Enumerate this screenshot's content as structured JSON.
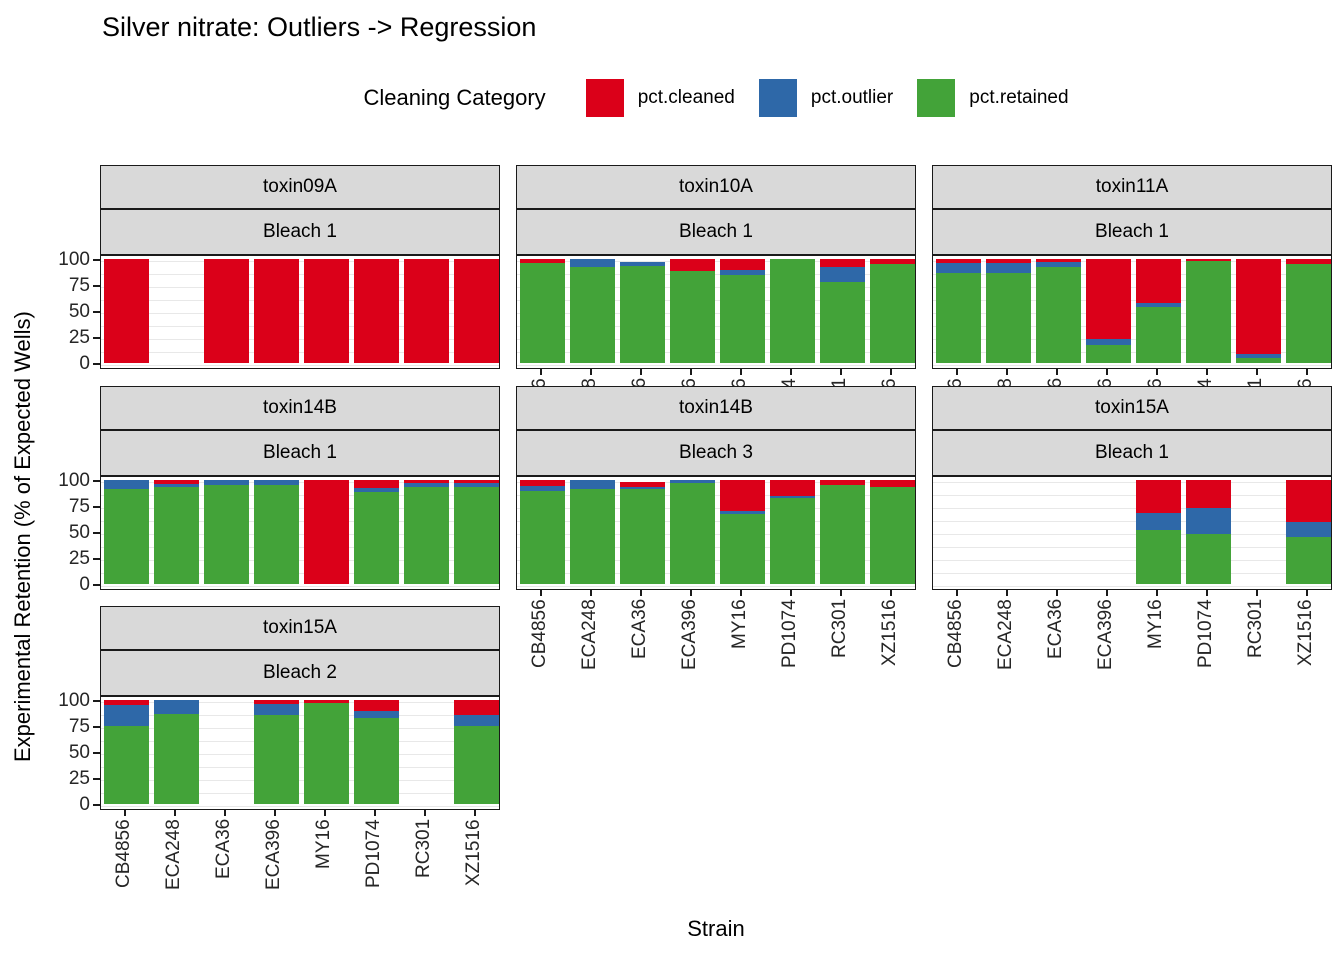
{
  "title": "Silver nitrate: Outliers -> Regression",
  "legend": {
    "title": "Cleaning Category",
    "items": [
      {
        "key": "cleaned",
        "label": "pct.cleaned",
        "color": "#db0019"
      },
      {
        "key": "outlier",
        "label": "pct.outlier",
        "color": "#2e68a8"
      },
      {
        "key": "retained",
        "label": "pct.retained",
        "color": "#43a339"
      }
    ]
  },
  "axes": {
    "x_title": "Strain",
    "y_title": "Experimental Retention (% of Expected Wells)",
    "y_ticks": [
      100,
      75,
      50,
      25,
      0
    ],
    "y_range": [
      0,
      100
    ],
    "grid_step": 12.5
  },
  "strains": [
    "CB4856",
    "ECA248",
    "ECA36",
    "ECA396",
    "MY16",
    "PD1074",
    "RC301",
    "XZ1516"
  ],
  "chart_data": {
    "type": "bar",
    "stacked": true,
    "stack_order_bottom_to_top": [
      "retained",
      "outlier",
      "cleaned"
    ],
    "categories": [
      "CB4856",
      "ECA248",
      "ECA36",
      "ECA396",
      "MY16",
      "PD1074",
      "RC301",
      "XZ1516"
    ],
    "panels": [
      {
        "row": 1,
        "col": 1,
        "toxin": "toxin09A",
        "bleach": "Bleach 1",
        "x_labels": false,
        "bars": [
          {
            "cleaned": 100,
            "outlier": 0,
            "retained": 0
          },
          null,
          {
            "cleaned": 100,
            "outlier": 0,
            "retained": 0
          },
          {
            "cleaned": 100,
            "outlier": 0,
            "retained": 0
          },
          {
            "cleaned": 100,
            "outlier": 0,
            "retained": 0
          },
          {
            "cleaned": 100,
            "outlier": 0,
            "retained": 0
          },
          {
            "cleaned": 100,
            "outlier": 0,
            "retained": 0
          },
          {
            "cleaned": 100,
            "outlier": 0,
            "retained": 0
          }
        ]
      },
      {
        "row": 1,
        "col": 2,
        "toxin": "toxin10A",
        "bleach": "Bleach 1",
        "x_labels": true,
        "bars": [
          {
            "cleaned": 4,
            "outlier": 0,
            "retained": 96
          },
          {
            "cleaned": 0,
            "outlier": 8,
            "retained": 92
          },
          {
            "cleaned": 0,
            "outlier": 4,
            "retained": 93
          },
          {
            "cleaned": 12,
            "outlier": 0,
            "retained": 88
          },
          {
            "cleaned": 11,
            "outlier": 4,
            "retained": 85
          },
          {
            "cleaned": 0,
            "outlier": 0,
            "retained": 100
          },
          {
            "cleaned": 8,
            "outlier": 14,
            "retained": 78
          },
          {
            "cleaned": 5,
            "outlier": 0,
            "retained": 95
          }
        ]
      },
      {
        "row": 1,
        "col": 3,
        "toxin": "toxin11A",
        "bleach": "Bleach 1",
        "x_labels": true,
        "bars": [
          {
            "cleaned": 4,
            "outlier": 9,
            "retained": 87
          },
          {
            "cleaned": 4,
            "outlier": 9,
            "retained": 87
          },
          {
            "cleaned": 3,
            "outlier": 5,
            "retained": 92
          },
          {
            "cleaned": 77,
            "outlier": 6,
            "retained": 17
          },
          {
            "cleaned": 42,
            "outlier": 4,
            "retained": 54
          },
          {
            "cleaned": 2,
            "outlier": 0,
            "retained": 98
          },
          {
            "cleaned": 91,
            "outlier": 4,
            "retained": 5
          },
          {
            "cleaned": 5,
            "outlier": 0,
            "retained": 95
          }
        ]
      },
      {
        "row": 2,
        "col": 1,
        "toxin": "toxin14B",
        "bleach": "Bleach 1",
        "x_labels": false,
        "bars": [
          {
            "cleaned": 0,
            "outlier": 9,
            "retained": 91
          },
          {
            "cleaned": 4,
            "outlier": 3,
            "retained": 93
          },
          {
            "cleaned": 0,
            "outlier": 5,
            "retained": 95
          },
          {
            "cleaned": 0,
            "outlier": 5,
            "retained": 95
          },
          {
            "cleaned": 100,
            "outlier": 0,
            "retained": 0
          },
          {
            "cleaned": 8,
            "outlier": 4,
            "retained": 88
          },
          {
            "cleaned": 3,
            "outlier": 4,
            "retained": 93
          },
          {
            "cleaned": 3,
            "outlier": 4,
            "retained": 93
          }
        ]
      },
      {
        "row": 2,
        "col": 2,
        "toxin": "toxin14B",
        "bleach": "Bleach 3",
        "x_labels": true,
        "bars": [
          {
            "cleaned": 6,
            "outlier": 5,
            "retained": 89
          },
          {
            "cleaned": 0,
            "outlier": 9,
            "retained": 91
          },
          {
            "cleaned": 5,
            "outlier": 2,
            "retained": 91
          },
          {
            "cleaned": 0,
            "outlier": 3,
            "retained": 97
          },
          {
            "cleaned": 30,
            "outlier": 3,
            "retained": 67
          },
          {
            "cleaned": 15,
            "outlier": 2,
            "retained": 83
          },
          {
            "cleaned": 5,
            "outlier": 0,
            "retained": 95
          },
          {
            "cleaned": 7,
            "outlier": 0,
            "retained": 93
          }
        ]
      },
      {
        "row": 2,
        "col": 3,
        "toxin": "toxin15A",
        "bleach": "Bleach 1",
        "x_labels": true,
        "bars": [
          null,
          null,
          null,
          null,
          {
            "cleaned": 32,
            "outlier": 16,
            "retained": 52
          },
          {
            "cleaned": 27,
            "outlier": 25,
            "retained": 48
          },
          null,
          {
            "cleaned": 40,
            "outlier": 15,
            "retained": 45
          }
        ]
      },
      {
        "row": 3,
        "col": 1,
        "toxin": "toxin15A",
        "bleach": "Bleach 2",
        "x_labels": true,
        "bars": [
          {
            "cleaned": 5,
            "outlier": 20,
            "retained": 75
          },
          {
            "cleaned": 0,
            "outlier": 13,
            "retained": 87
          },
          null,
          {
            "cleaned": 4,
            "outlier": 10,
            "retained": 86
          },
          {
            "cleaned": 3,
            "outlier": 0,
            "retained": 97
          },
          {
            "cleaned": 11,
            "outlier": 6,
            "retained": 83
          },
          null,
          {
            "cleaned": 14,
            "outlier": 11,
            "retained": 75
          }
        ]
      }
    ]
  }
}
